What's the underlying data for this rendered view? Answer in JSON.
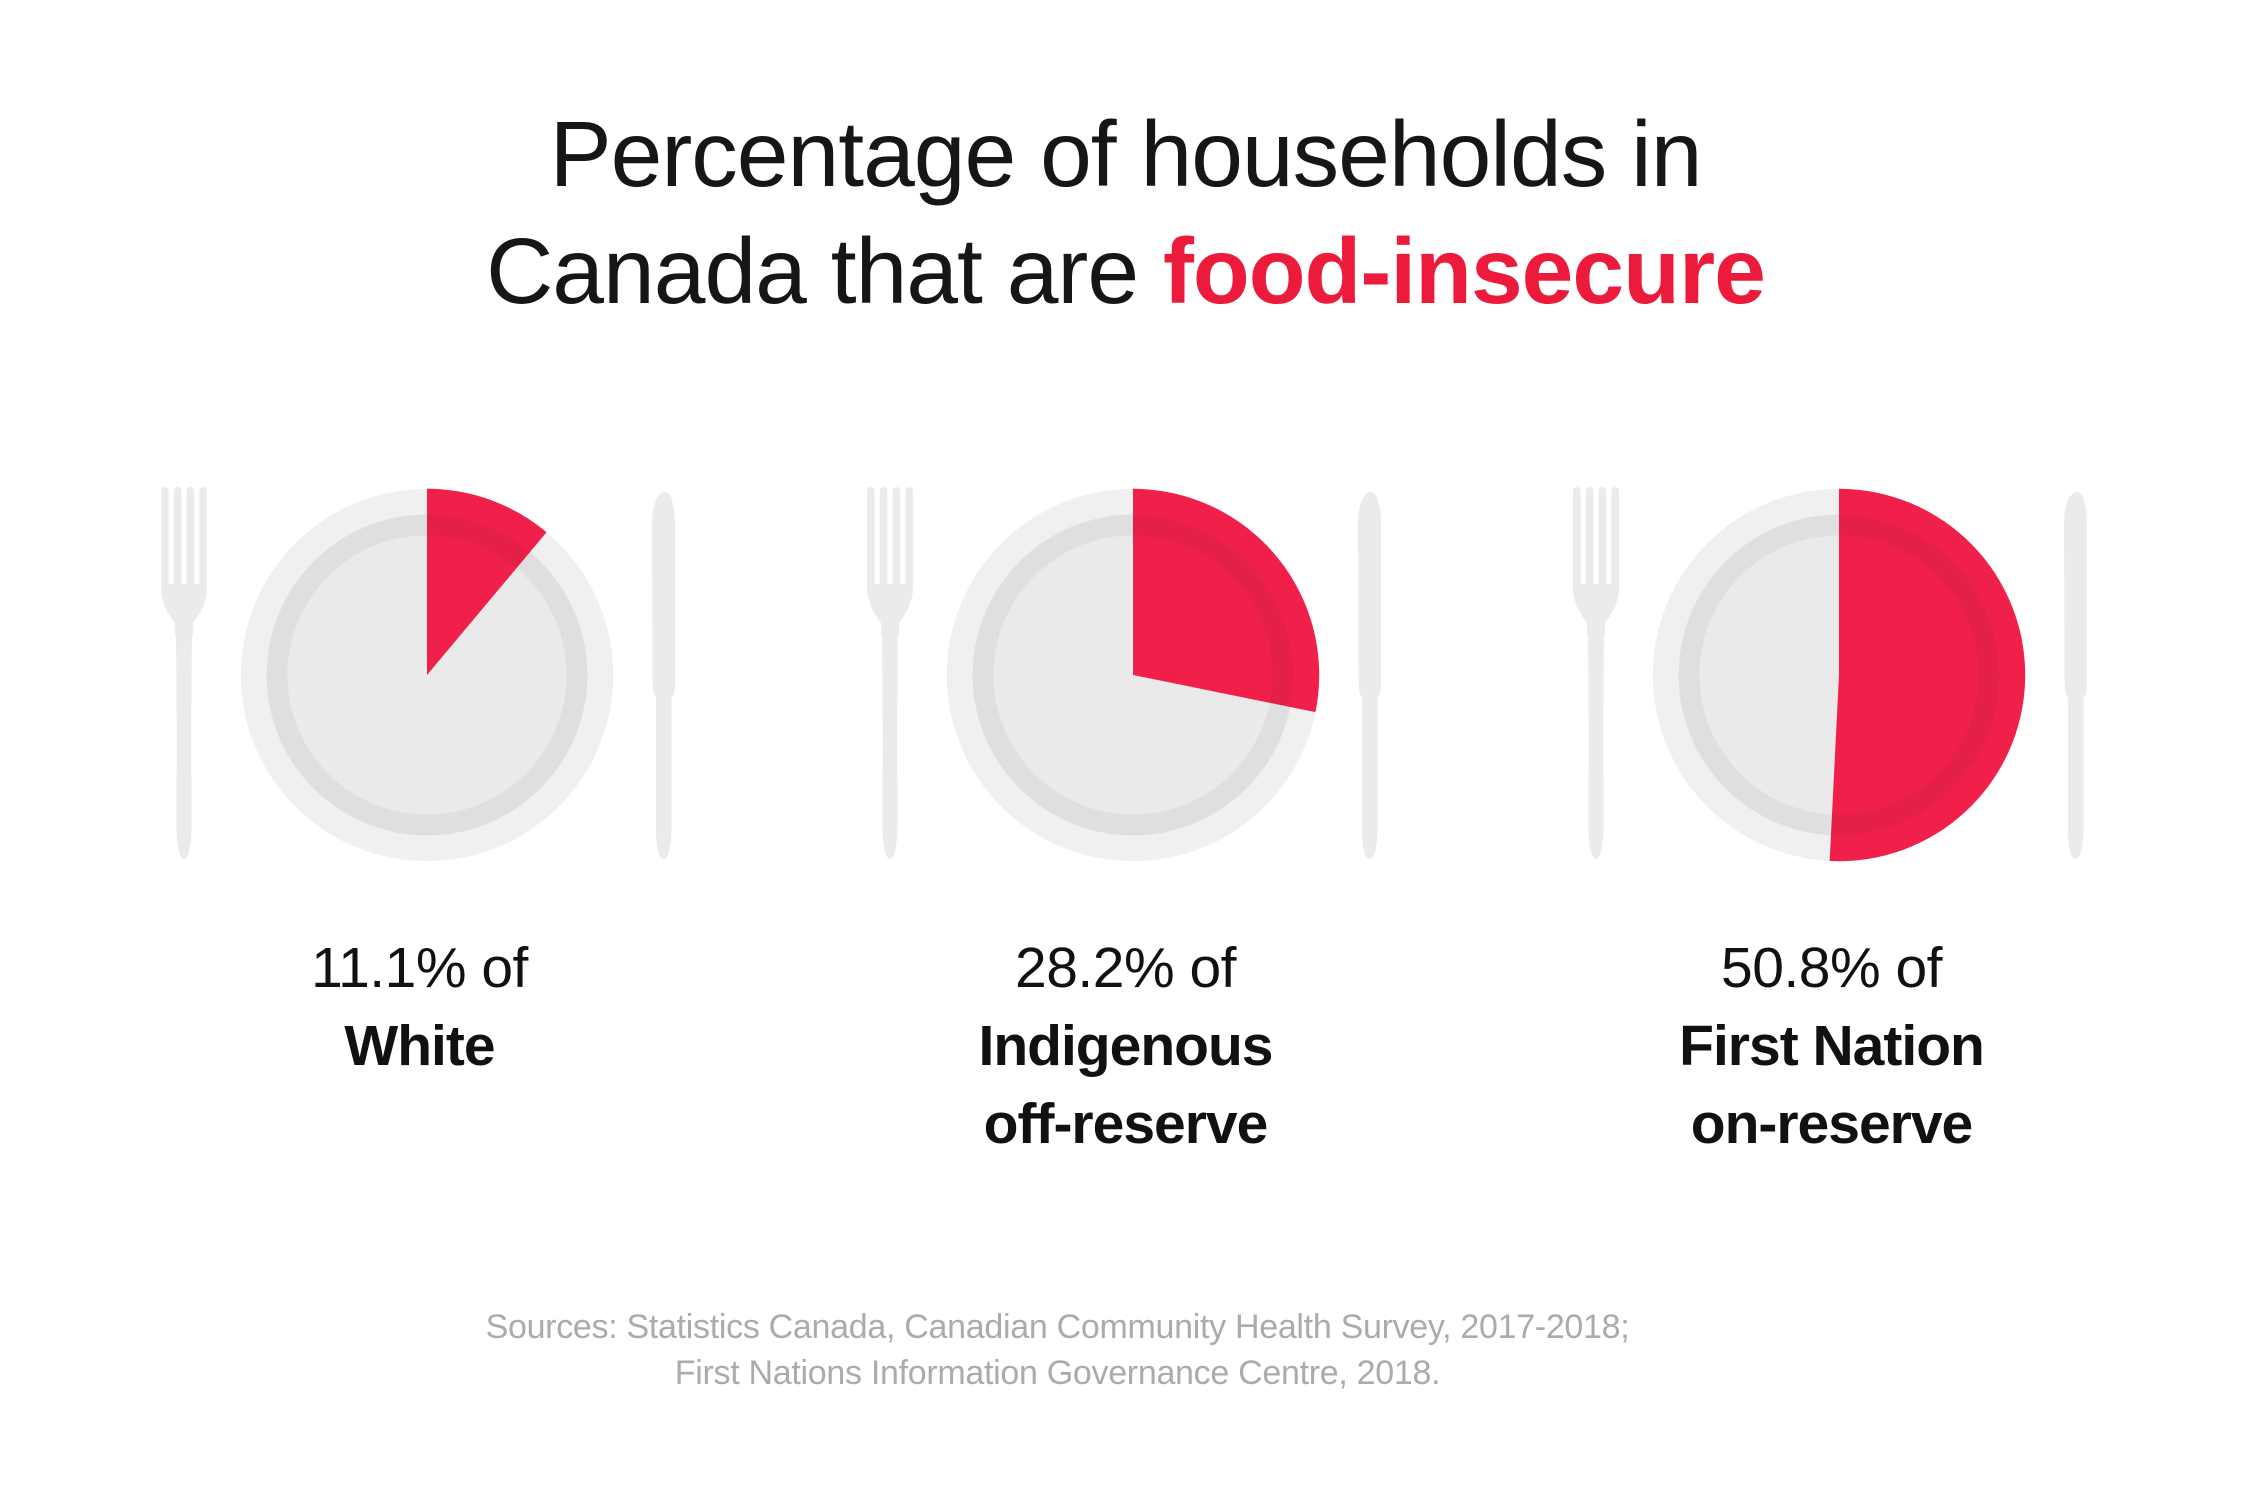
{
  "title": {
    "line1": "Percentage of households in",
    "line2_prefix": "Canada that are ",
    "line2_highlight": "food-insecure"
  },
  "chart_data": {
    "type": "pie",
    "title": "Percentage of households in Canada that are food-insecure",
    "unit": "percent of households that are food-insecure",
    "legend_position": "below-each-pie",
    "slice_start_angle_deg": 0,
    "slice_direction": "clockwise",
    "series": [
      {
        "name": "White",
        "value": 11.1,
        "remainder": 88.9
      },
      {
        "name": "Indigenous off-reserve",
        "value": 28.2,
        "remainder": 71.8
      },
      {
        "name": "First Nation on-reserve",
        "value": 50.8,
        "remainder": 49.2
      }
    ]
  },
  "plates": [
    {
      "percent_label": "11.1% of",
      "group_lines": [
        "White"
      ],
      "value": 11.1
    },
    {
      "percent_label": "28.2% of",
      "group_lines": [
        "Indigenous",
        "off-reserve"
      ],
      "value": 28.2
    },
    {
      "percent_label": "50.8% of",
      "group_lines": [
        "First Nation",
        "on-reserve"
      ],
      "value": 50.8
    }
  ],
  "sources": {
    "line1": "Sources: Statistics Canada, Canadian Community Health Survey, 2017-2018;",
    "line2": "First Nations Information Governance Centre, 2018."
  },
  "colors": {
    "title_text": "#161616",
    "accent_red": "#ec1b3c",
    "pie_red": "#f1204a",
    "plate_rim": "#f0f0f1",
    "plate_surface": "#eaeaeb",
    "plate_ring_shade": "rgba(40,40,55,0.055)",
    "cutlery": "#ebebec",
    "label_text": "#111111",
    "sources_text": "#ababad"
  }
}
